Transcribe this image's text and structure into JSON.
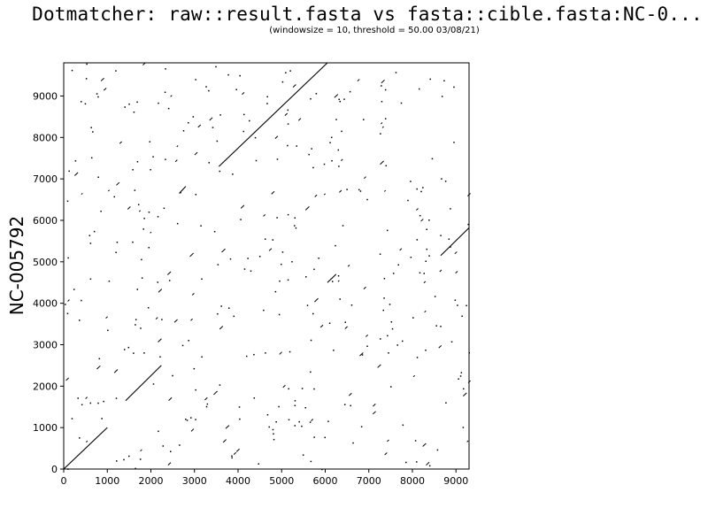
{
  "title": "Dotmatcher: raw::result.fasta vs fasta::cible.fasta:NC-0...",
  "subtitle": "(windowsize = 10, threshold = 50.00  03/08/21)",
  "chart_data": {
    "type": "scatter",
    "ylabel": "NC-005792",
    "xlabel": "",
    "xlim": [
      0,
      9300
    ],
    "ylim": [
      0,
      9800
    ],
    "xticks": [
      0,
      1000,
      2000,
      3000,
      4000,
      5000,
      6000,
      7000,
      8000,
      9000
    ],
    "yticks": [
      0,
      1000,
      2000,
      3000,
      4000,
      5000,
      6000,
      7000,
      8000,
      9000
    ],
    "grid": false,
    "diagonal_segments": [
      {
        "x": [
          0,
          1000
        ],
        "y": [
          0,
          1000
        ]
      },
      {
        "x": [
          1420,
          2240
        ],
        "y": [
          1650,
          2500
        ]
      },
      {
        "x": [
          2650,
          2800
        ],
        "y": [
          6650,
          6820
        ]
      },
      {
        "x": [
          3560,
          6050
        ],
        "y": [
          7300,
          9800
        ]
      },
      {
        "x": [
          6050,
          6250
        ],
        "y": [
          4500,
          4700
        ]
      },
      {
        "x": [
          8650,
          9300
        ],
        "y": [
          5150,
          5820
        ]
      }
    ],
    "noise_dot_count": 420
  }
}
